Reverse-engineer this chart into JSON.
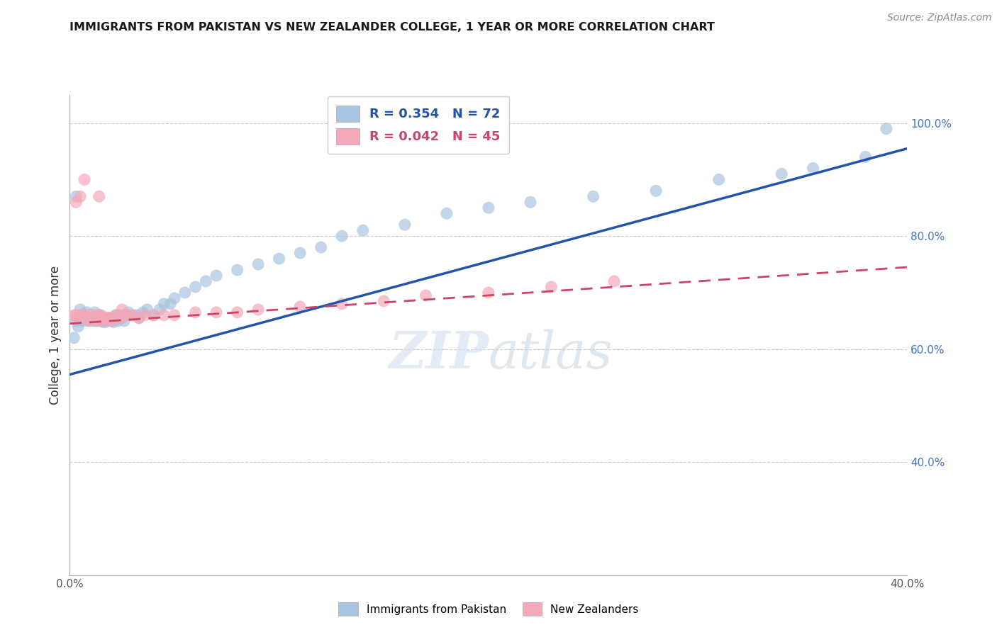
{
  "title": "IMMIGRANTS FROM PAKISTAN VS NEW ZEALANDER COLLEGE, 1 YEAR OR MORE CORRELATION CHART",
  "source": "Source: ZipAtlas.com",
  "ylabel": "College, 1 year or more",
  "xmin": 0.0,
  "xmax": 0.4,
  "ymin": 0.2,
  "ymax": 1.05,
  "legend1_label": "R = 0.354   N = 72",
  "legend2_label": "R = 0.042   N = 45",
  "legend_bottom1": "Immigrants from Pakistan",
  "legend_bottom2": "New Zealanders",
  "blue_color": "#a8c4e0",
  "pink_color": "#f4a8b8",
  "blue_line_color": "#2255aa",
  "pink_line_color": "#cc4466",
  "blue_line_x0": 0.0,
  "blue_line_y0": 0.555,
  "blue_line_x1": 0.4,
  "blue_line_y1": 0.955,
  "pink_line_x0": 0.0,
  "pink_line_y0": 0.645,
  "pink_line_x1": 0.4,
  "pink_line_y1": 0.745,
  "blue_scatter_x": [
    0.002,
    0.003,
    0.004,
    0.005,
    0.005,
    0.006,
    0.007,
    0.008,
    0.008,
    0.009,
    0.01,
    0.01,
    0.011,
    0.011,
    0.012,
    0.012,
    0.013,
    0.013,
    0.014,
    0.014,
    0.015,
    0.015,
    0.016,
    0.016,
    0.017,
    0.017,
    0.018,
    0.018,
    0.019,
    0.02,
    0.02,
    0.021,
    0.022,
    0.023,
    0.024,
    0.025,
    0.026,
    0.027,
    0.028,
    0.03,
    0.032,
    0.033,
    0.035,
    0.037,
    0.04,
    0.043,
    0.045,
    0.048,
    0.05,
    0.055,
    0.06,
    0.065,
    0.07,
    0.08,
    0.09,
    0.1,
    0.11,
    0.12,
    0.13,
    0.14,
    0.16,
    0.18,
    0.2,
    0.22,
    0.25,
    0.28,
    0.31,
    0.34,
    0.355,
    0.38,
    0.003,
    0.39
  ],
  "blue_scatter_y": [
    0.62,
    0.65,
    0.64,
    0.66,
    0.67,
    0.65,
    0.66,
    0.65,
    0.665,
    0.66,
    0.65,
    0.66,
    0.65,
    0.66,
    0.65,
    0.665,
    0.65,
    0.655,
    0.65,
    0.66,
    0.65,
    0.655,
    0.648,
    0.655,
    0.65,
    0.648,
    0.65,
    0.655,
    0.655,
    0.65,
    0.655,
    0.648,
    0.66,
    0.65,
    0.66,
    0.655,
    0.65,
    0.66,
    0.665,
    0.66,
    0.66,
    0.655,
    0.665,
    0.67,
    0.66,
    0.67,
    0.68,
    0.68,
    0.69,
    0.7,
    0.71,
    0.72,
    0.73,
    0.74,
    0.75,
    0.76,
    0.77,
    0.78,
    0.8,
    0.81,
    0.82,
    0.84,
    0.85,
    0.86,
    0.87,
    0.88,
    0.9,
    0.91,
    0.92,
    0.94,
    0.87,
    0.99
  ],
  "pink_scatter_x": [
    0.002,
    0.003,
    0.004,
    0.005,
    0.006,
    0.007,
    0.008,
    0.009,
    0.01,
    0.011,
    0.012,
    0.013,
    0.014,
    0.015,
    0.016,
    0.017,
    0.018,
    0.019,
    0.02,
    0.022,
    0.024,
    0.026,
    0.028,
    0.03,
    0.033,
    0.036,
    0.04,
    0.045,
    0.05,
    0.06,
    0.07,
    0.08,
    0.09,
    0.11,
    0.13,
    0.15,
    0.17,
    0.2,
    0.23,
    0.26,
    0.003,
    0.005,
    0.007,
    0.014,
    0.025
  ],
  "pink_scatter_y": [
    0.66,
    0.66,
    0.655,
    0.66,
    0.66,
    0.655,
    0.66,
    0.65,
    0.66,
    0.655,
    0.655,
    0.65,
    0.66,
    0.66,
    0.65,
    0.655,
    0.655,
    0.655,
    0.65,
    0.66,
    0.655,
    0.66,
    0.66,
    0.66,
    0.655,
    0.66,
    0.66,
    0.66,
    0.66,
    0.665,
    0.665,
    0.665,
    0.67,
    0.675,
    0.68,
    0.685,
    0.695,
    0.7,
    0.71,
    0.72,
    0.86,
    0.87,
    0.9,
    0.87,
    0.67
  ],
  "watermark_zip": "ZIP",
  "watermark_atlas": "atlas",
  "background_color": "#ffffff",
  "grid_color": "#cccccc"
}
